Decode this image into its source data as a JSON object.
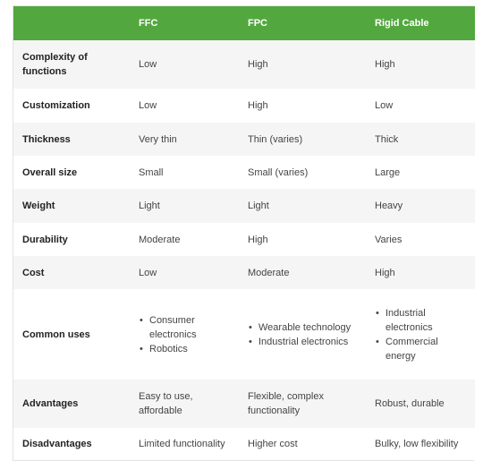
{
  "header": {
    "c0": "",
    "c1": "FFC",
    "c2": "FPC",
    "c3": "Rigid Cable"
  },
  "rows": [
    {
      "label": "Complexity of functions",
      "c1": "Low",
      "c2": "High",
      "c3": "High"
    },
    {
      "label": "Customization",
      "c1": "Low",
      "c2": "High",
      "c3": "Low"
    },
    {
      "label": "Thickness",
      "c1": "Very thin",
      "c2": "Thin (varies)",
      "c3": "Thick"
    },
    {
      "label": "Overall size",
      "c1": "Small",
      "c2": "Small (varies)",
      "c3": "Large"
    },
    {
      "label": "Weight",
      "c1": "Light",
      "c2": "Light",
      "c3": "Heavy"
    },
    {
      "label": "Durability",
      "c1": "Moderate",
      "c2": "High",
      "c3": "Varies"
    },
    {
      "label": "Cost",
      "c1": "Low",
      "c2": "Moderate",
      "c3": "High"
    },
    {
      "label": "Common uses",
      "c1": [
        "Consumer electronics",
        "Robotics"
      ],
      "c2": [
        "Wearable technology",
        "Industrial electronics"
      ],
      "c3": [
        "Industrial electronics",
        "Commercial energy"
      ]
    },
    {
      "label": "Advantages",
      "c1": "Easy to use, affordable",
      "c2": "Flexible, complex functionality",
      "c3": "Robust, durable"
    },
    {
      "label": "Disadvantages",
      "c1": "Limited functionality",
      "c2": "Higher cost",
      "c3": "Bulky, low flexibility"
    }
  ],
  "colors": {
    "header_bg": "#53a73f",
    "header_text": "#ffffff",
    "stripe": "#f5f5f5"
  }
}
